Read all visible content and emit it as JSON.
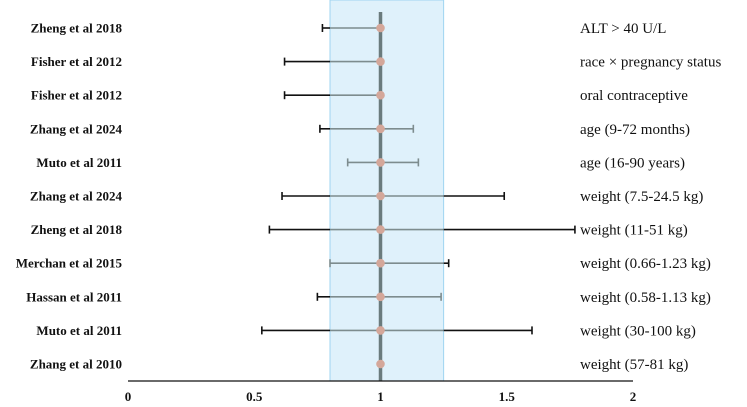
{
  "chart_data": {
    "type": "forest",
    "title": "",
    "xlabel": "",
    "ylabel": "",
    "xlim": [
      0,
      2
    ],
    "x_ticks": [
      "0",
      "0.5",
      "1",
      "1.5",
      "2"
    ],
    "x_tick_values": [
      0,
      0.5,
      1,
      1.5,
      2
    ],
    "reference_band": [
      0.8,
      1.25
    ],
    "reference_line": 1,
    "colors": {
      "band": "#dff1fb",
      "band_edge": "#9fd4f0",
      "ref_line": "#6a7b7d",
      "point": "#d4a79a",
      "ci_inside": "#7d8c8e",
      "ci_outside": "#111111"
    },
    "rows": [
      {
        "study": "Zheng et al 2018",
        "covariate": "ALT > 40 U/L",
        "estimate": 1.0,
        "lower": 0.77,
        "upper": 1.0
      },
      {
        "study": "Fisher et al 2012",
        "covariate": "race × pregnancy status",
        "estimate": 1.0,
        "lower": 0.62,
        "upper": 1.0
      },
      {
        "study": "Fisher et al 2012",
        "covariate": "oral contraceptive",
        "estimate": 1.0,
        "lower": 0.62,
        "upper": 1.0
      },
      {
        "study": "Zhang et al 2024",
        "covariate": "age (9-72 months)",
        "estimate": 1.0,
        "lower": 0.76,
        "upper": 1.13
      },
      {
        "study": "Muto et al 2011",
        "covariate": "age (16-90 years)",
        "estimate": 1.0,
        "lower": 0.87,
        "upper": 1.15
      },
      {
        "study": "Zhang et al 2024",
        "covariate": "weight (7.5-24.5 kg)",
        "estimate": 1.0,
        "lower": 0.61,
        "upper": 1.49
      },
      {
        "study": "Zheng et al 2018",
        "covariate": "weight (11-51 kg)",
        "estimate": 1.0,
        "lower": 0.56,
        "upper": 1.77
      },
      {
        "study": "Merchan et al 2015",
        "covariate": "weight (0.66-1.23 kg)",
        "estimate": 1.0,
        "lower": 0.8,
        "upper": 1.27
      },
      {
        "study": "Hassan et al 2011",
        "covariate": "weight (0.58-1.13 kg)",
        "estimate": 1.0,
        "lower": 0.75,
        "upper": 1.24
      },
      {
        "study": "Muto et al 2011",
        "covariate": "weight (30-100 kg)",
        "estimate": 1.0,
        "lower": 0.53,
        "upper": 1.6
      },
      {
        "study": "Zhang et al 2010",
        "covariate": "weight (57-81 kg)",
        "estimate": 1.0,
        "lower": 1.0,
        "upper": 1.0
      }
    ]
  }
}
